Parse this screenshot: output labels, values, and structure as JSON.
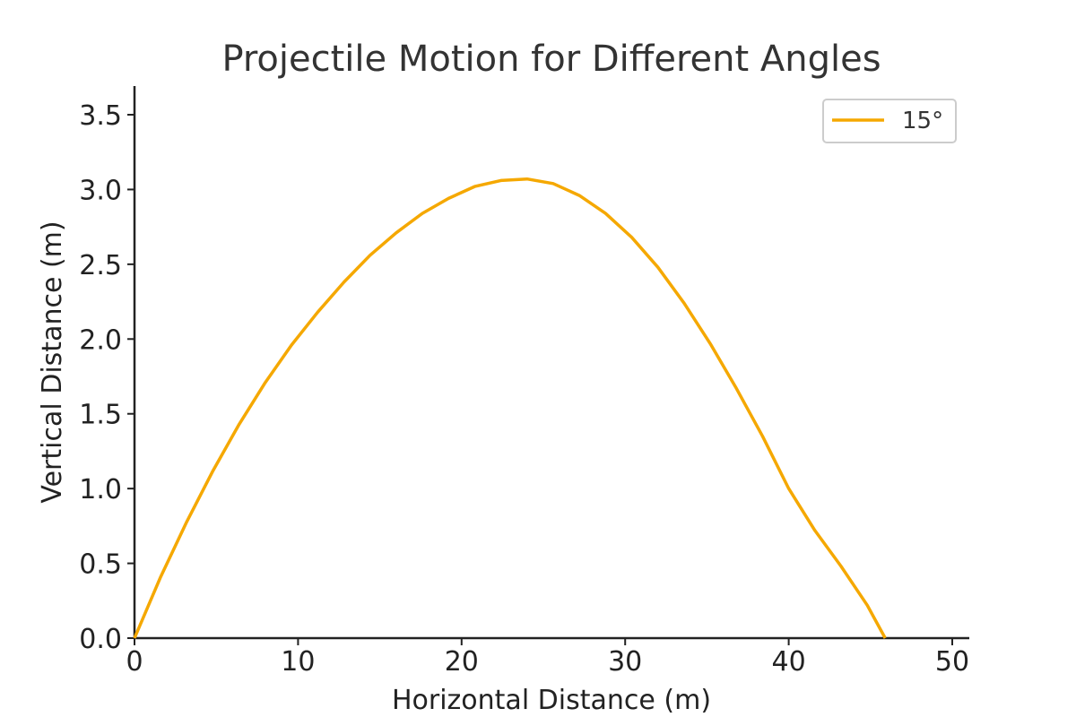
{
  "chart_data": {
    "type": "line",
    "title": "Projectile Motion for Different Angles",
    "xlabel": "Horizontal Distance (m)",
    "ylabel": "Vertical Distance (m)",
    "xlim": [
      0,
      51
    ],
    "ylim": [
      0,
      3.7
    ],
    "x_ticks": [
      0,
      10,
      20,
      30,
      40,
      50
    ],
    "x_tick_labels": [
      "0",
      "10",
      "20",
      "30",
      "40",
      "50"
    ],
    "y_ticks": [
      0,
      0.5,
      1.0,
      1.5,
      2.0,
      2.5,
      3.0,
      3.5
    ],
    "y_tick_labels": [
      "0.0",
      "0.5",
      "1.0",
      "1.5",
      "2.0",
      "2.5",
      "3.0",
      "3.5"
    ],
    "grid": false,
    "legend_position": "top-right",
    "series": [
      {
        "name": "15°",
        "color": "#F5A800",
        "x": [
          0,
          1.6,
          3.2,
          4.8,
          6.4,
          8.0,
          9.6,
          11.2,
          12.8,
          14.4,
          16.0,
          17.6,
          19.2,
          20.8,
          22.4,
          24.0,
          25.6,
          27.2,
          28.8,
          30.4,
          32.0,
          33.6,
          35.2,
          36.8,
          38.4,
          40.0,
          41.6,
          43.2,
          44.8,
          45.9
        ],
        "y": [
          0,
          0.41,
          0.78,
          1.12,
          1.43,
          1.71,
          1.96,
          2.18,
          2.38,
          2.56,
          2.71,
          2.84,
          2.94,
          3.02,
          3.06,
          3.07,
          3.04,
          2.96,
          2.84,
          2.68,
          2.48,
          2.24,
          1.97,
          1.67,
          1.35,
          1.0,
          0.72,
          0.48,
          0.22,
          0.0
        ]
      }
    ]
  }
}
